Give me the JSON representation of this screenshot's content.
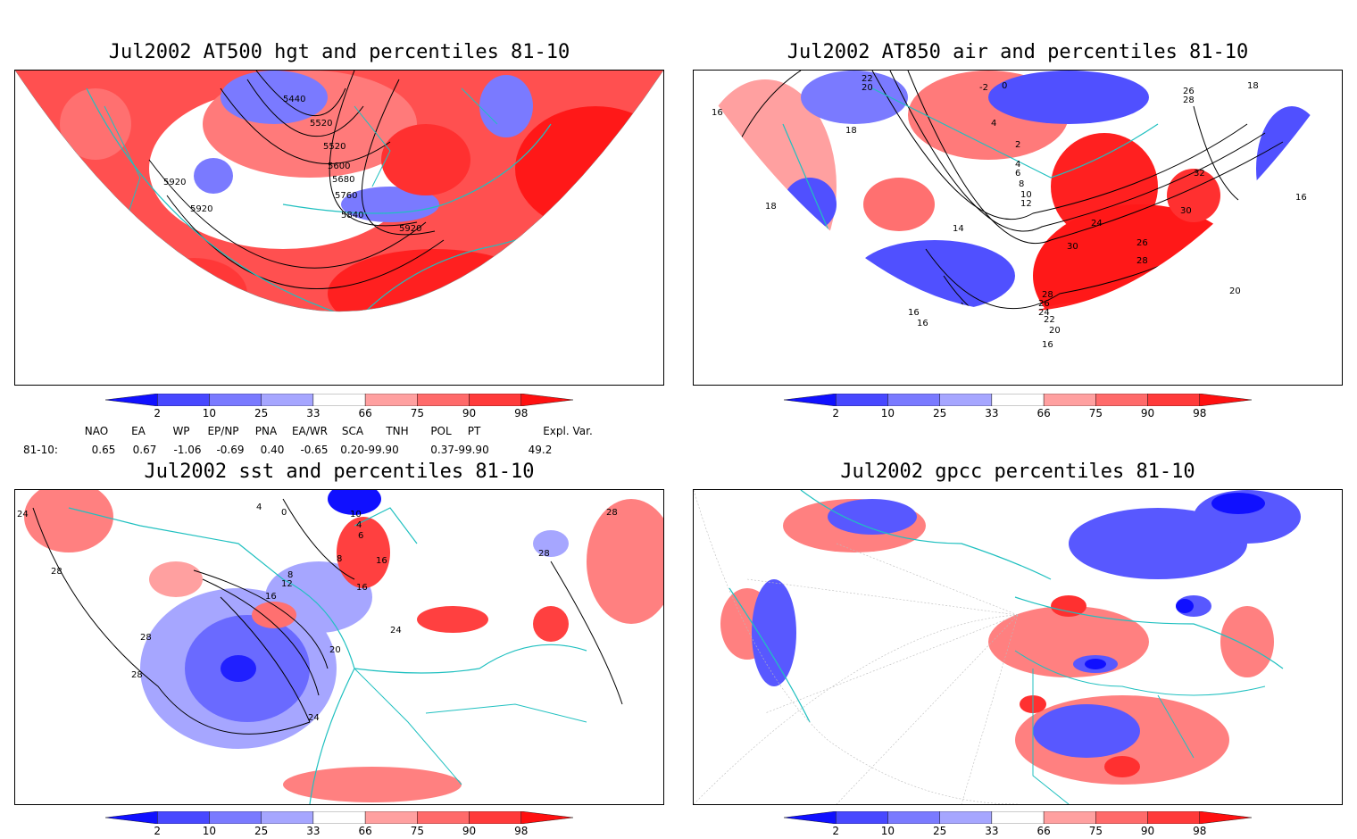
{
  "panels": [
    {
      "id": "hgt500",
      "title": "Jul2002 AT500 hgt and percentiles 81-10",
      "contour_labels": [
        "5440",
        "5520",
        "5520",
        "5600",
        "5680",
        "5760",
        "5840",
        "5920",
        "5920",
        "5920"
      ]
    },
    {
      "id": "air850",
      "title": "Jul2002 AT850 air and percentiles 81-10",
      "contour_labels": [
        "22",
        "20",
        "-2",
        "0",
        "18",
        "26",
        "28",
        "16",
        "18",
        "4",
        "2",
        "4",
        "6",
        "8",
        "10",
        "12",
        "14",
        "18",
        "32",
        "24",
        "30",
        "26",
        "28",
        "30",
        "16",
        "28",
        "26",
        "24",
        "22",
        "20",
        "16",
        "16",
        "16",
        "20"
      ]
    },
    {
      "id": "sst",
      "title": "Jul2002 sst and percentiles 81-10",
      "contour_labels": [
        "24",
        "4",
        "0",
        "10",
        "4",
        "6",
        "8",
        "8",
        "12",
        "16",
        "16",
        "28",
        "28",
        "28",
        "16",
        "28",
        "20",
        "24",
        "28",
        "24"
      ]
    },
    {
      "id": "gpcc",
      "title": "Jul2002 gpcc percentiles 81-10",
      "contour_labels": []
    }
  ],
  "colorbar": {
    "labels": [
      "2",
      "10",
      "25",
      "33",
      "66",
      "75",
      "90",
      "98"
    ],
    "colors": [
      "#1010ff",
      "#4848ff",
      "#7a7aff",
      "#a6a6ff",
      "#ffffff",
      "#ffa0a0",
      "#ff6a6a",
      "#ff3a3a",
      "#ff1010"
    ]
  },
  "teleconnections": {
    "headers": [
      "NAO",
      "EA",
      "WP",
      "EP/NP",
      "PNA",
      "EA/WR",
      "SCA",
      "TNH",
      "POL",
      "PT",
      "Expl. Var."
    ],
    "row_label": "81-10:",
    "values": [
      "0.65",
      "0.67",
      "-1.06",
      "-0.69",
      "0.40",
      "-0.65",
      "0.20-99.90",
      "0.37-99.90",
      "49.2"
    ]
  },
  "colors": {
    "coast": "#20c0c0",
    "red": "#ff4040",
    "lightred": "#ffa0a0",
    "blue": "#5050ff",
    "lightblue": "#a8a8ff",
    "darkblue": "#1010f0",
    "darkred": "#ff1818"
  }
}
